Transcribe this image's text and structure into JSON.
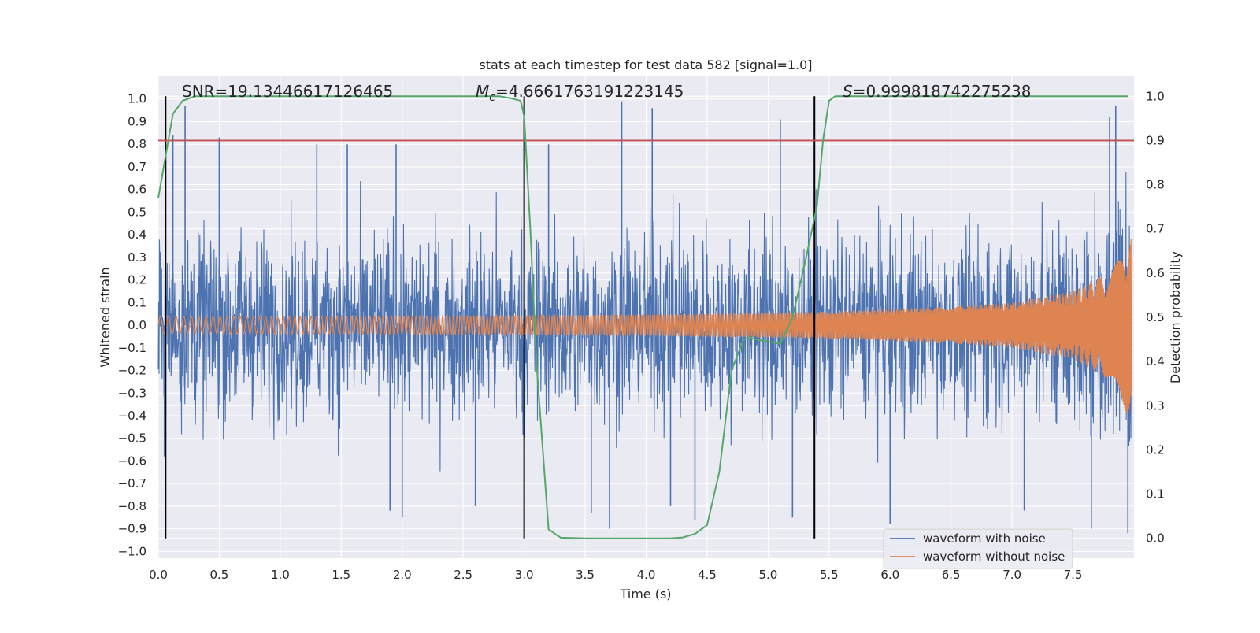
{
  "chart_data": {
    "type": "line",
    "title": "stats at each timestep for test data 582 [signal=1.0]",
    "xlabel": "Time (s)",
    "ylabel": "Whitened strain",
    "y2label": "Detection probability",
    "xlim": [
      0.0,
      8.0
    ],
    "ylim": [
      -1.03,
      1.1
    ],
    "y2lim": [
      -0.045,
      1.045
    ],
    "xticks": [
      "0.0",
      "0.5",
      "1.0",
      "1.5",
      "2.0",
      "2.5",
      "3.0",
      "3.5",
      "4.0",
      "4.5",
      "5.0",
      "5.5",
      "6.0",
      "6.5",
      "7.0",
      "7.5"
    ],
    "yticks": [
      "1.0",
      "0.9",
      "0.8",
      "0.7",
      "0.6",
      "0.5",
      "0.4",
      "0.3",
      "0.2",
      "0.1",
      "0.0",
      "−0.1",
      "−0.2",
      "−0.3",
      "−0.4",
      "−0.5",
      "−0.6",
      "−0.7",
      "−0.8",
      "−0.9",
      "−1.0"
    ],
    "y2ticks": [
      "1.0",
      "0.9",
      "0.8",
      "0.7",
      "0.6",
      "0.5",
      "0.4",
      "0.3",
      "0.2",
      "0.1",
      "0.0"
    ],
    "grid": true,
    "legend_placement": "lower-right",
    "annotations": {
      "snr": "SNR=19.13446617126465",
      "mc_symbol": "M",
      "mc_sub": "c",
      "mc_value": "=4.6661763191223145",
      "s_symbol": "S",
      "s_value": "=0.999818742275238"
    },
    "threshold": {
      "axis": "right",
      "value": 0.9,
      "color": "#c44e52"
    },
    "vertical_lines": [
      0.06,
      3.0,
      5.38
    ],
    "series": [
      {
        "name": "waveform with noise",
        "axis": "left",
        "color": "#4c72b0",
        "noise_sigma": 0.2,
        "extremes": [
          {
            "t": 0.05,
            "v": -0.58
          },
          {
            "t": 0.12,
            "v": 0.84
          },
          {
            "t": 0.22,
            "v": 0.97
          },
          {
            "t": 0.5,
            "v": 0.83
          },
          {
            "t": 1.3,
            "v": 0.8
          },
          {
            "t": 1.55,
            "v": 0.8
          },
          {
            "t": 1.9,
            "v": -0.82
          },
          {
            "t": 1.95,
            "v": 0.8
          },
          {
            "t": 2.0,
            "v": -0.85
          },
          {
            "t": 2.6,
            "v": -0.8
          },
          {
            "t": 3.2,
            "v": 0.8
          },
          {
            "t": 3.55,
            "v": -0.83
          },
          {
            "t": 3.8,
            "v": 0.99
          },
          {
            "t": 3.7,
            "v": -0.9
          },
          {
            "t": 4.05,
            "v": 0.96
          },
          {
            "t": 4.2,
            "v": -0.8
          },
          {
            "t": 4.4,
            "v": -0.86
          },
          {
            "t": 5.1,
            "v": 0.91
          },
          {
            "t": 5.2,
            "v": -0.85
          },
          {
            "t": 6.0,
            "v": -0.88
          },
          {
            "t": 7.1,
            "v": -0.82
          },
          {
            "t": 7.65,
            "v": -0.9
          },
          {
            "t": 7.8,
            "v": 0.92
          },
          {
            "t": 7.85,
            "v": 0.97
          },
          {
            "t": 7.95,
            "v": -0.92
          }
        ]
      },
      {
        "name": "waveform without noise",
        "axis": "left",
        "color": "#dd8452",
        "envelope": [
          [
            0.0,
            0.038
          ],
          [
            2.0,
            0.04
          ],
          [
            4.0,
            0.047
          ],
          [
            5.5,
            0.06
          ],
          [
            6.5,
            0.082
          ],
          [
            7.0,
            0.1
          ],
          [
            7.5,
            0.15
          ],
          [
            7.8,
            0.24
          ],
          [
            7.95,
            0.4
          ]
        ]
      },
      {
        "name": "Detection probability",
        "axis": "right",
        "color": "#55a868",
        "x": [
          0.0,
          0.07,
          0.12,
          0.2,
          0.3,
          0.4,
          0.6,
          1.0,
          2.0,
          2.8,
          2.9,
          2.97,
          3.0,
          3.05,
          3.1,
          3.2,
          3.3,
          3.5,
          4.0,
          4.2,
          4.3,
          4.4,
          4.5,
          4.6,
          4.7,
          4.8,
          4.85,
          4.9,
          5.0,
          5.1,
          5.2,
          5.3,
          5.4,
          5.45,
          5.5,
          5.55,
          5.6,
          6.0,
          7.0,
          7.95
        ],
        "y": [
          0.77,
          0.88,
          0.96,
          0.99,
          1.0,
          1.0,
          1.0,
          1.0,
          1.0,
          1.0,
          0.995,
          0.99,
          0.955,
          0.7,
          0.4,
          0.02,
          0.0015,
          0.0,
          0.0,
          0.0,
          0.002,
          0.01,
          0.03,
          0.15,
          0.38,
          0.45,
          0.455,
          0.45,
          0.445,
          0.44,
          0.5,
          0.62,
          0.75,
          0.9,
          0.99,
          1.0,
          1.0,
          1.0,
          1.0,
          1.0
        ]
      }
    ]
  }
}
